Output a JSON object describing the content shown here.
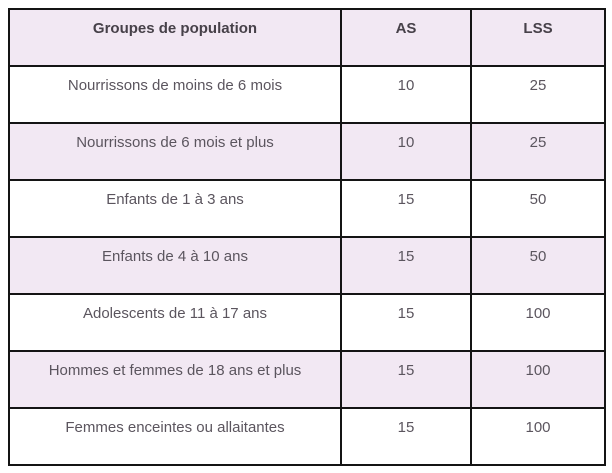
{
  "table": {
    "columns": [
      "Groupes de population",
      "AS",
      "LSS"
    ],
    "rows": [
      {
        "group": "Nourrissons de moins de 6 mois",
        "as_value": "10",
        "lss_value": "25"
      },
      {
        "group": "Nourrissons de 6 mois et plus",
        "as_value": "10",
        "lss_value": "25"
      },
      {
        "group": "Enfants de 1 à 3 ans",
        "as_value": "15",
        "lss_value": "50"
      },
      {
        "group": "Enfants de 4 à 10 ans",
        "as_value": "15",
        "lss_value": "50"
      },
      {
        "group": "Adolescents de 11 à 17 ans",
        "as_value": "15",
        "lss_value": "100"
      },
      {
        "group": "Hommes et femmes de 18 ans et plus",
        "as_value": "15",
        "lss_value": "100"
      },
      {
        "group": "Femmes enceintes ou allaitantes",
        "as_value": "15",
        "lss_value": "100"
      }
    ]
  },
  "colors": {
    "header-bg": "#f2e8f3",
    "alt-row-bg": "#f2e8f3",
    "row-bg": "#ffffff",
    "border": "#141414",
    "header-text": "#474149",
    "body-text": "#5b555e"
  }
}
